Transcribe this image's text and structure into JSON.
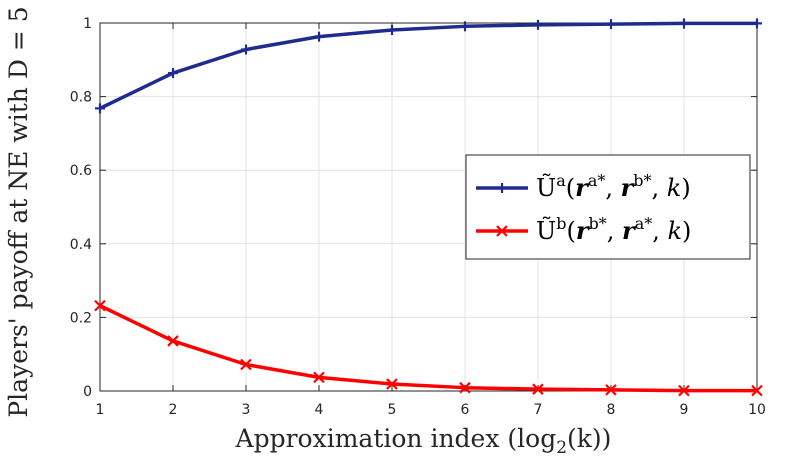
{
  "chart_data": {
    "type": "line",
    "title": "",
    "xlabel": "Approximation index (log",
    "xlabel_sub": "2",
    "xlabel_tail": "(k))",
    "ylabel": "Players' payoff at NE with D = 5",
    "x": [
      1,
      2,
      3,
      4,
      5,
      6,
      7,
      8,
      9,
      10
    ],
    "xlim": [
      1,
      10
    ],
    "ylim": [
      0,
      1
    ],
    "xticks": [
      "1",
      "2",
      "3",
      "4",
      "5",
      "6",
      "7",
      "8",
      "9",
      "10"
    ],
    "yticks": [
      "0",
      "0.2",
      "0.4",
      "0.6",
      "0.8",
      "1"
    ],
    "ytick_values": [
      0,
      0.2,
      0.4,
      0.6,
      0.8,
      1
    ],
    "grid": true,
    "legend_position": "center-right",
    "series": [
      {
        "name": "Ũ^a(r^{a*}, r^{b*}, k)",
        "legend_main": "Ũ",
        "legend_sup": "a",
        "legend_args": [
          "r",
          "a*",
          "r",
          "b*",
          "k"
        ],
        "color": "#1f2c8f",
        "marker": "plus",
        "values": [
          0.768,
          0.864,
          0.928,
          0.963,
          0.981,
          0.991,
          0.995,
          0.997,
          0.999,
          0.999
        ]
      },
      {
        "name": "Ũ^b(r^{b*}, r^{a*}, k)",
        "legend_main": "Ũ",
        "legend_sup": "b",
        "legend_args": [
          "r",
          "b*",
          "r",
          "a*",
          "k"
        ],
        "color": "#ff0000",
        "marker": "x",
        "values": [
          0.232,
          0.136,
          0.072,
          0.037,
          0.019,
          0.009,
          0.005,
          0.003,
          0.001,
          0.001
        ]
      }
    ]
  }
}
